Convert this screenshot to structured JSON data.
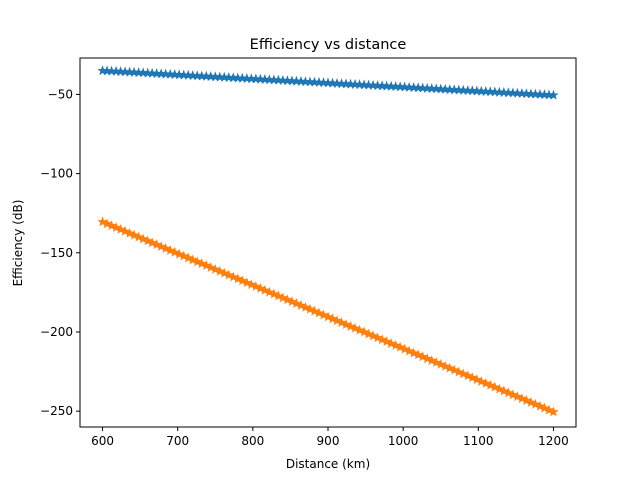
{
  "chart_data": {
    "type": "line",
    "title": "Efficiency vs distance",
    "xlabel": "Distance (km)",
    "ylabel": "Efficiency (dB)",
    "xlim": [
      570,
      1230
    ],
    "ylim": [
      -260,
      -27
    ],
    "xticks": [
      600,
      700,
      800,
      900,
      1000,
      1100,
      1200
    ],
    "yticks": [
      -50,
      -100,
      -150,
      -200,
      -250
    ],
    "grid": false,
    "marker": "star",
    "x": {
      "start": 600,
      "end": 1200,
      "step": 6
    },
    "series": [
      {
        "color": "#1f77b4",
        "y_start": -35,
        "y_end": -50.5
      },
      {
        "color": "#ff7f0e",
        "y_start": -130.5,
        "y_end": -250.5
      }
    ]
  }
}
